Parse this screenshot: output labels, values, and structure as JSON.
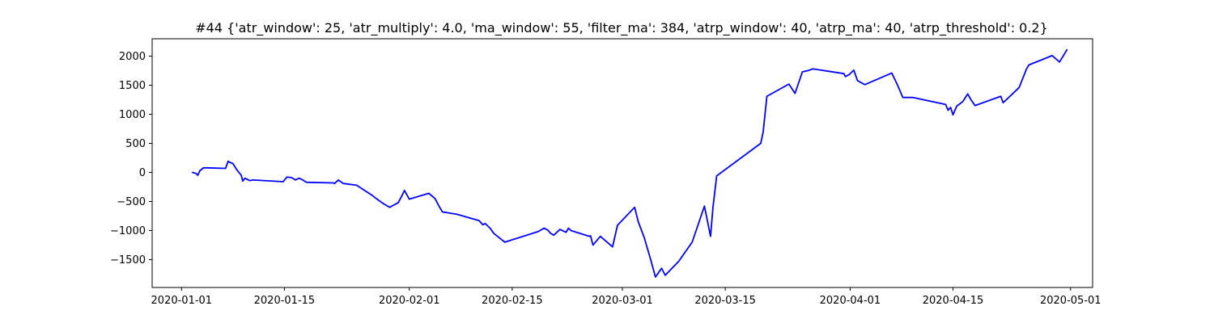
{
  "chart_data": {
    "type": "line",
    "title": "#44 {'atr_window': 25, 'atr_multiply': 4.0, 'ma_window': 55, 'filter_ma': 384, 'atrp_window': 40, 'atrp_ma': 40, 'atrp_threshold': 0.2}",
    "xlabel": "",
    "ylabel": "",
    "grid": false,
    "legend": "none",
    "xlim": [
      "2019-12-28",
      "2020-05-04"
    ],
    "ylim": [
      -1980,
      2300
    ],
    "x_ticks": [
      {
        "value": "2020-01-01",
        "label": "2020-01-01"
      },
      {
        "value": "2020-01-15",
        "label": "2020-01-15"
      },
      {
        "value": "2020-02-01",
        "label": "2020-02-01"
      },
      {
        "value": "2020-02-15",
        "label": "2020-02-15"
      },
      {
        "value": "2020-03-01",
        "label": "2020-03-01"
      },
      {
        "value": "2020-03-15",
        "label": "2020-03-15"
      },
      {
        "value": "2020-04-01",
        "label": "2020-04-01"
      },
      {
        "value": "2020-04-15",
        "label": "2020-04-15"
      },
      {
        "value": "2020-05-01",
        "label": "2020-05-01"
      }
    ],
    "y_ticks": [
      {
        "value": 2000,
        "label": "2000"
      },
      {
        "value": 1500,
        "label": "1500"
      },
      {
        "value": 1000,
        "label": "1000"
      },
      {
        "value": 500,
        "label": "500"
      },
      {
        "value": 0,
        "label": "0"
      },
      {
        "value": -500,
        "label": "−500"
      },
      {
        "value": -1000,
        "label": "−1000"
      },
      {
        "value": -1500,
        "label": "−1500"
      }
    ],
    "series": [
      {
        "color": "#0000ff",
        "x": [
          "2020-01-02 12:00",
          "2020-01-03 00:00",
          "2020-01-03 05:00",
          "2020-01-03 12:00",
          "2020-01-04 00:00",
          "2020-01-07 00:00",
          "2020-01-07 08:00",
          "2020-01-08 00:00",
          "2020-01-08 12:00",
          "2020-01-09 03:00",
          "2020-01-09 08:00",
          "2020-01-09 15:00",
          "2020-01-10 06:00",
          "2020-01-10 18:00",
          "2020-01-14 20:00",
          "2020-01-15 08:00",
          "2020-01-16 00:00",
          "2020-01-16 12:00",
          "2020-01-17 00:00",
          "2020-01-17 12:00",
          "2020-01-18 00:00",
          "2020-01-21 16:00",
          "2020-01-21 20:00",
          "2020-01-22 08:00",
          "2020-01-23 00:00",
          "2020-01-24 20:00",
          "2020-01-27 00:00",
          "2020-01-27 12:00",
          "2020-01-28 12:00",
          "2020-01-29 08:00",
          "2020-01-30 12:00",
          "2020-01-31 00:00",
          "2020-01-31 08:00",
          "2020-02-01 00:00",
          "2020-02-03 16:00",
          "2020-02-04 12:00",
          "2020-02-05 00:00",
          "2020-02-05 12:00",
          "2020-02-06 12:00",
          "2020-02-07 12:00",
          "2020-02-10 12:00",
          "2020-02-11 00:00",
          "2020-02-11 08:00",
          "2020-02-12 00:00",
          "2020-02-12 12:00",
          "2020-02-14 00:00",
          "2020-02-18 12:00",
          "2020-02-19 08:00",
          "2020-02-19 20:00",
          "2020-02-20 06:00",
          "2020-02-20 16:00",
          "2020-02-21 12:00",
          "2020-02-22 08:00",
          "2020-02-22 16:00",
          "2020-02-23 00:00",
          "2020-02-25 12:00",
          "2020-02-25 16:00",
          "2020-02-26 00:00",
          "2020-02-27 00:00",
          "2020-02-28 16:00",
          "2020-02-29 08:00",
          "2020-03-02 16:00",
          "2020-03-03 04:00",
          "2020-03-04 00:00",
          "2020-03-04 22:00",
          "2020-03-05 12:00",
          "2020-03-06 08:00",
          "2020-03-06 20:00",
          "2020-03-08 16:00",
          "2020-03-10 12:00",
          "2020-03-12 04:00",
          "2020-03-13 00:00",
          "2020-03-13 08:00",
          "2020-03-13 20:00",
          "2020-03-19 20:00",
          "2020-03-20 04:00",
          "2020-03-20 16:00",
          "2020-03-23 16:00",
          "2020-03-24 12:00",
          "2020-03-25 12:00",
          "2020-03-26 12:00",
          "2020-03-26 20:00",
          "2020-03-27 00:00",
          "2020-03-31 04:00",
          "2020-03-31 08:00",
          "2020-03-31 20:00",
          "2020-04-01 12:00",
          "2020-04-02 00:00",
          "2020-04-03 00:00",
          "2020-04-06 16:00",
          "2020-04-07 12:00",
          "2020-04-08 04:00",
          "2020-04-09 12:00",
          "2020-04-14 00:00",
          "2020-04-14 08:00",
          "2020-04-14 16:00",
          "2020-04-15 00:00",
          "2020-04-15 12:00",
          "2020-04-16 08:00",
          "2020-04-17 00:00",
          "2020-04-17 12:00",
          "2020-04-18 00:00",
          "2020-04-21 12:00",
          "2020-04-21 20:00",
          "2020-04-24 00:00",
          "2020-04-25 00:00",
          "2020-04-25 08:00",
          "2020-04-28 12:00",
          "2020-04-29 12:00",
          "2020-04-30 12:00"
        ],
        "y": [
          0,
          -20,
          -50,
          30,
          80,
          70,
          190,
          150,
          50,
          -50,
          -150,
          -100,
          -140,
          -130,
          -160,
          -80,
          -90,
          -130,
          -100,
          -130,
          -170,
          -180,
          -190,
          -130,
          -190,
          -220,
          -400,
          -450,
          -540,
          -600,
          -520,
          -400,
          -310,
          -460,
          -360,
          -450,
          -570,
          -680,
          -700,
          -720,
          -830,
          -900,
          -880,
          -960,
          -1050,
          -1200,
          -1020,
          -960,
          -990,
          -1050,
          -1080,
          -980,
          -1030,
          -960,
          -1000,
          -1100,
          -1090,
          -1250,
          -1100,
          -1280,
          -910,
          -600,
          -850,
          -1130,
          -1530,
          -1800,
          -1650,
          -1770,
          -1530,
          -1200,
          -580,
          -1100,
          -600,
          -60,
          500,
          700,
          1310,
          1520,
          1360,
          1730,
          1760,
          1780,
          1780,
          1700,
          1650,
          1680,
          1760,
          1580,
          1510,
          1710,
          1490,
          1290,
          1290,
          1170,
          1070,
          1120,
          990,
          1140,
          1220,
          1350,
          1240,
          1150,
          1310,
          1200,
          1460,
          1780,
          1850,
          2010,
          1900,
          2110
        ]
      }
    ]
  }
}
